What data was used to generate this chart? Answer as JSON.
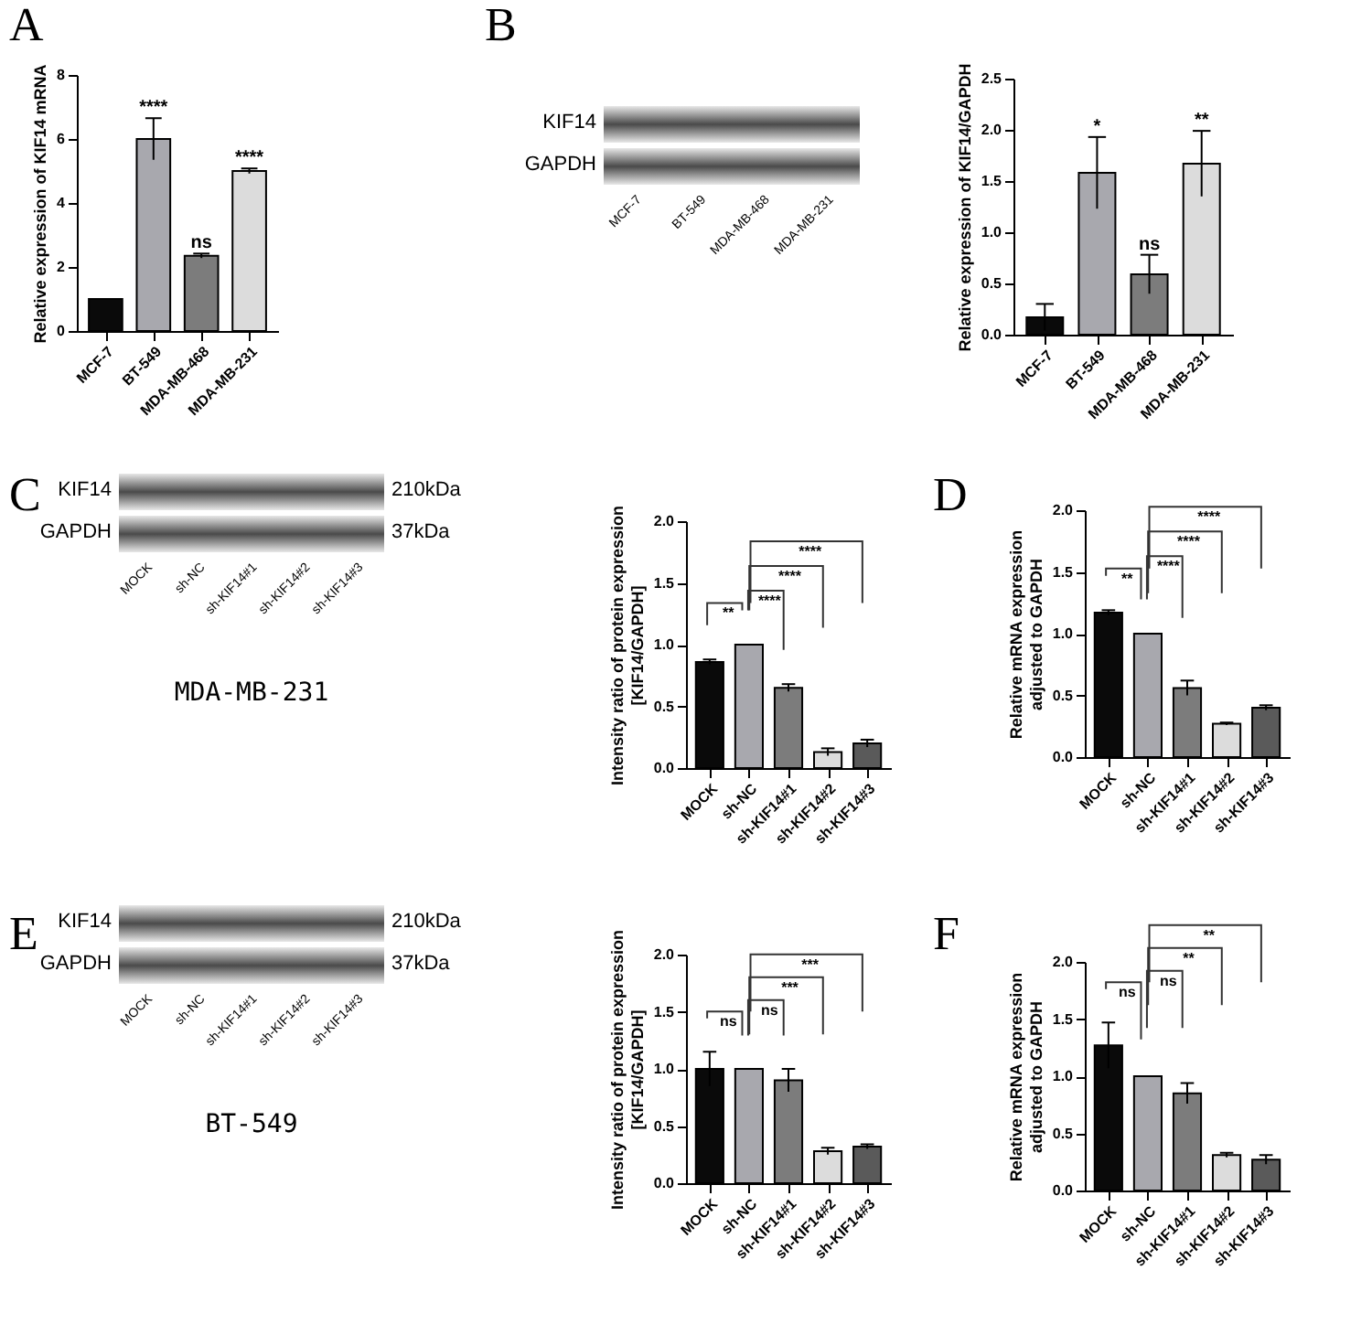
{
  "chart_data": [
    {
      "type": "bar",
      "title": "A",
      "ylabel": "Relative expression of KIF14 mRNA",
      "categories": [
        "MCF-7",
        "BT-549",
        "MDA-MB-468",
        "MDA-MB-231"
      ],
      "values": [
        1,
        6.0,
        2.35,
        5.0
      ],
      "errors": [
        null,
        0.65,
        0.07,
        0.08
      ],
      "colors": [
        "#0a0a0a",
        "#a8a8ae",
        "#7c7c7c",
        "#dcdcdc"
      ],
      "ylim": [
        0,
        8
      ],
      "yticks": [
        0,
        2,
        4,
        6,
        8
      ],
      "grid": false,
      "annotations": [
        {
          "text": "****",
          "x": "BT-549",
          "y": 6.65
        },
        {
          "text": "ns",
          "x": "MDA-MB-468",
          "y": 2.42
        },
        {
          "text": "****",
          "x": "MDA-MB-231",
          "y": 5.08
        }
      ]
    },
    {
      "type": "other",
      "title": "B",
      "categories": [
        "MCF-7",
        "BT-549",
        "MDA-MB-468",
        "MDA-MB-231"
      ],
      "annotations": [
        "KIF14",
        "GAPDH"
      ]
    },
    {
      "type": "bar",
      "ylabel": "Relative expression of KIF14/GAPDH",
      "categories": [
        "MCF-7",
        "BT-549",
        "MDA-MB-468",
        "MDA-MB-231"
      ],
      "values": [
        0.17,
        1.58,
        0.59,
        1.67
      ],
      "errors": [
        0.13,
        0.35,
        0.19,
        0.32
      ],
      "colors": [
        "#0a0a0a",
        "#a8a8ae",
        "#7c7c7c",
        "#dcdcdc"
      ],
      "ylim": [
        0,
        2.5
      ],
      "yticks": [
        {
          "value": 0,
          "label": "0.0"
        },
        {
          "value": 0.5,
          "label": "0.5"
        },
        {
          "value": 1,
          "label": "1.0"
        },
        {
          "value": 1.5,
          "label": "1.5"
        },
        {
          "value": 2,
          "label": "2.0"
        },
        {
          "value": 2.5,
          "label": "2.5"
        }
      ],
      "grid": false,
      "annotations": [
        {
          "text": "*",
          "x": "BT-549",
          "y": 1.93
        },
        {
          "text": "ns",
          "x": "MDA-MB-468",
          "y": 0.78
        },
        {
          "text": "**",
          "x": "MDA-MB-231",
          "y": 1.99
        }
      ]
    },
    {
      "type": "other",
      "title": "C",
      "categories": [
        "MOCK",
        "sh-NC",
        "sh-KIF14#1",
        "sh-KIF14#2",
        "sh-KIF14#3"
      ],
      "annotations": [
        "KIF14",
        "GAPDH",
        "210kDa",
        "37kDa",
        "MDA-MB-231"
      ]
    },
    {
      "type": "bar",
      "ylabel": "Intensity ratio of protein expression\n[KIF14/GAPDH]",
      "categories": [
        "MOCK",
        "sh-NC",
        "sh-KIF14#1",
        "sh-KIF14#2",
        "sh-KIF14#3"
      ],
      "values": [
        0.86,
        1.0,
        0.65,
        0.13,
        0.2
      ],
      "errors": [
        0.02,
        null,
        0.03,
        0.03,
        0.03
      ],
      "colors": [
        "#0a0a0a",
        "#a8a8ae",
        "#7c7c7c",
        "#dcdcdc",
        "#5a5a5a"
      ],
      "ylim": [
        0,
        2
      ],
      "yticks": [
        {
          "value": 0,
          "label": "0.0"
        },
        {
          "value": 0.5,
          "label": "0.5"
        },
        {
          "value": 1,
          "label": "1.0"
        },
        {
          "value": 1.5,
          "label": "1.5"
        },
        {
          "value": 2,
          "label": "2.0"
        }
      ],
      "grid": false,
      "annotations": [
        "**",
        "****",
        "****",
        "****"
      ]
    },
    {
      "type": "bar",
      "title": "D",
      "ylabel": "Relative mRNA expression\nadjusted to GAPDH",
      "categories": [
        "MOCK",
        "sh-NC",
        "sh-KIF14#1",
        "sh-KIF14#2",
        "sh-KIF14#3"
      ],
      "values": [
        1.17,
        1.0,
        0.56,
        0.27,
        0.4
      ],
      "errors": [
        0.02,
        null,
        0.06,
        0.01,
        0.02
      ],
      "colors": [
        "#0a0a0a",
        "#a8a8ae",
        "#7c7c7c",
        "#dcdcdc",
        "#5a5a5a"
      ],
      "ylim": [
        0,
        2
      ],
      "yticks": [
        {
          "value": 0,
          "label": "0.0"
        },
        {
          "value": 0.5,
          "label": "0.5"
        },
        {
          "value": 1,
          "label": "1.0"
        },
        {
          "value": 1.5,
          "label": "1.5"
        },
        {
          "value": 2,
          "label": "2.0"
        }
      ],
      "grid": false,
      "annotations": [
        "**",
        "****",
        "****",
        "****"
      ]
    },
    {
      "type": "other",
      "title": "E",
      "categories": [
        "MOCK",
        "sh-NC",
        "sh-KIF14#1",
        "sh-KIF14#2",
        "sh-KIF14#3"
      ],
      "annotations": [
        "KIF14",
        "GAPDH",
        "210kDa",
        "37kDa",
        "BT-549"
      ]
    },
    {
      "type": "bar",
      "ylabel": "Intensity ratio of protein expression\n[KIF14/GAPDH]",
      "categories": [
        "MOCK",
        "sh-NC",
        "sh-KIF14#1",
        "sh-KIF14#2",
        "sh-KIF14#3"
      ],
      "values": [
        1.0,
        1.0,
        0.9,
        0.28,
        0.32
      ],
      "errors": [
        0.15,
        null,
        0.1,
        0.03,
        0.02
      ],
      "colors": [
        "#0a0a0a",
        "#a8a8ae",
        "#7c7c7c",
        "#dcdcdc",
        "#5a5a5a"
      ],
      "ylim": [
        0,
        2
      ],
      "yticks": [
        {
          "value": 0,
          "label": "0.0"
        },
        {
          "value": 0.5,
          "label": "0.5"
        },
        {
          "value": 1,
          "label": "1.0"
        },
        {
          "value": 1.5,
          "label": "1.5"
        },
        {
          "value": 2,
          "label": "2.0"
        }
      ],
      "grid": false,
      "annotations": [
        "ns",
        "ns",
        "***",
        "***"
      ]
    },
    {
      "type": "bar",
      "title": "F",
      "ylabel": "Relative mRNA expression\nadjusted to GAPDH",
      "categories": [
        "MOCK",
        "sh-NC",
        "sh-KIF14#1",
        "sh-KIF14#2",
        "sh-KIF14#3"
      ],
      "values": [
        1.27,
        1.0,
        0.85,
        0.31,
        0.27
      ],
      "errors": [
        0.2,
        null,
        0.09,
        0.02,
        0.04
      ],
      "colors": [
        "#0a0a0a",
        "#a8a8ae",
        "#7c7c7c",
        "#dcdcdc",
        "#5a5a5a"
      ],
      "ylim": [
        0,
        2
      ],
      "yticks": [
        {
          "value": 0,
          "label": "0.0"
        },
        {
          "value": 0.5,
          "label": "0.5"
        },
        {
          "value": 1,
          "label": "1.0"
        },
        {
          "value": 1.5,
          "label": "1.5"
        },
        {
          "value": 2,
          "label": "2.0"
        }
      ],
      "grid": false,
      "annotations": [
        "ns",
        "ns",
        "**",
        "**"
      ]
    }
  ]
}
